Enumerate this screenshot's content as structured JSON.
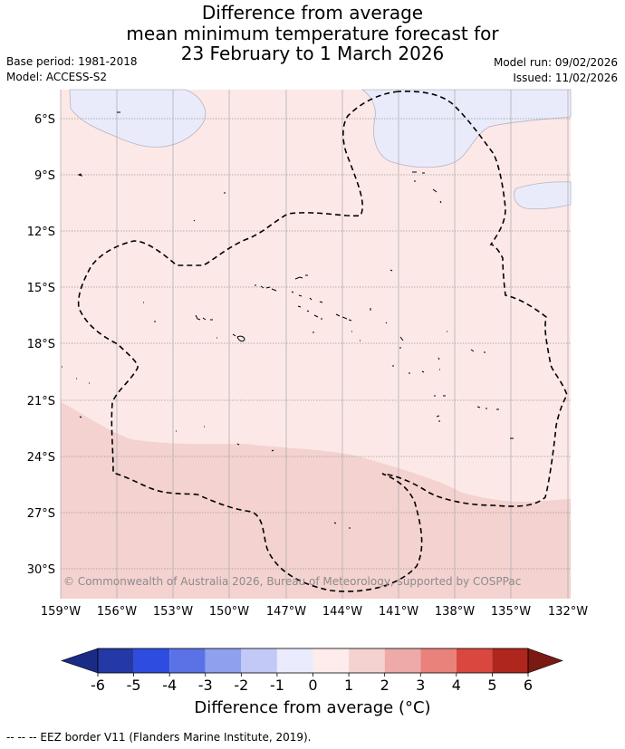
{
  "title": {
    "line1": "Difference from average",
    "line2": "mean minimum temperature forecast for",
    "line3": "23 February to 1 March 2026"
  },
  "meta": {
    "base_period": "Base period: 1981-2018",
    "model": "Model: ACCESS-S2",
    "model_run": "Model run: 09/02/2026",
    "issued": "Issued: 11/02/2026"
  },
  "map": {
    "lat_labels": [
      "6°S",
      "9°S",
      "12°S",
      "15°S",
      "18°S",
      "21°S",
      "24°S",
      "27°S",
      "30°S"
    ],
    "lon_labels": [
      "159°W",
      "156°W",
      "153°W",
      "150°W",
      "147°W",
      "144°W",
      "141°W",
      "138°W",
      "135°W",
      "132°W"
    ],
    "copyright": "© Commonwealth of Australia 2026, Bureau of Meteorology, supported by COSPPac",
    "colors": {
      "above_0_1": "#fce9e7",
      "above_1_2": "#f4d2d0",
      "below_0_1": "#e9ebfb",
      "grid": "#999999",
      "eez": "#000000"
    }
  },
  "colorbar": {
    "ticks": [
      "-6",
      "-5",
      "-4",
      "-3",
      "-2",
      "-1",
      "0",
      "1",
      "2",
      "3",
      "4",
      "5",
      "6"
    ],
    "colors": [
      "#2438a6",
      "#2e4ce0",
      "#5a72e6",
      "#8ea0ee",
      "#c2c9f6",
      "#eaebfd",
      "#fdeceb",
      "#f4d2d0",
      "#eeaaa8",
      "#e8827b",
      "#d9473e",
      "#ae261d"
    ],
    "under_color": "#1a2b86",
    "over_color": "#7a1a13",
    "title": "Difference from average (°C)"
  },
  "footer": "-- -- -- EEZ border V11 (Flanders Marine Institute, 2019)."
}
